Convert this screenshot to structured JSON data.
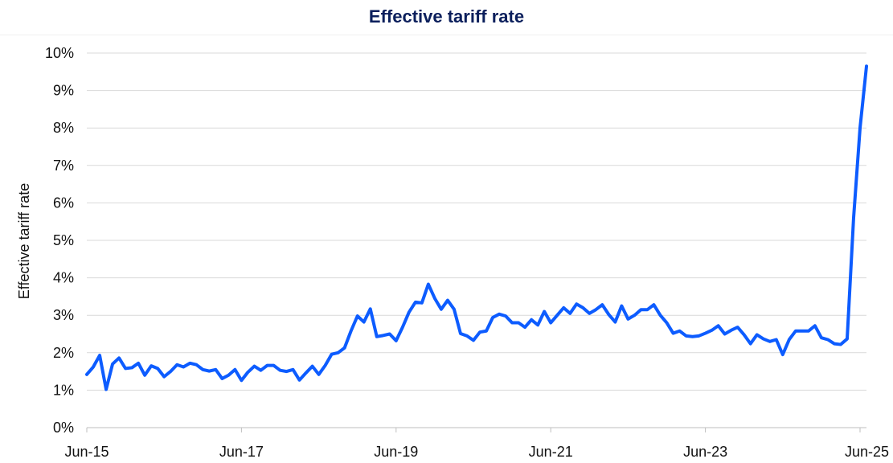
{
  "chart_data": {
    "type": "line",
    "title": "Effective tariff rate",
    "xlabel": "",
    "ylabel": "Effective tariff rate",
    "ylim": [
      0,
      10
    ],
    "yticks": [
      "0%",
      "1%",
      "2%",
      "3%",
      "4%",
      "5%",
      "6%",
      "7%",
      "8%",
      "9%",
      "10%"
    ],
    "xticks": [
      "Jun-15",
      "Jun-17",
      "Jun-19",
      "Jun-21",
      "Jun-23",
      "Jun-25"
    ],
    "grid": true,
    "colors": {
      "line": "#0d5cff",
      "grid": "#d9d9d9",
      "title": "#0b1f5c"
    },
    "series": [
      {
        "x_start": "Jun-15",
        "frequency": "monthly",
        "values": [
          1.42,
          1.62,
          1.93,
          1.02,
          1.7,
          1.86,
          1.58,
          1.6,
          1.72,
          1.4,
          1.65,
          1.58,
          1.36,
          1.5,
          1.68,
          1.62,
          1.72,
          1.68,
          1.55,
          1.51,
          1.55,
          1.31,
          1.4,
          1.55,
          1.26,
          1.48,
          1.64,
          1.53,
          1.66,
          1.66,
          1.53,
          1.5,
          1.55,
          1.27,
          1.46,
          1.64,
          1.42,
          1.66,
          1.96,
          2.0,
          2.13,
          2.58,
          2.98,
          2.82,
          3.17,
          2.43,
          2.46,
          2.5,
          2.32,
          2.68,
          3.08,
          3.35,
          3.33,
          3.83,
          3.45,
          3.16,
          3.4,
          3.16,
          2.51,
          2.45,
          2.33,
          2.55,
          2.58,
          2.94,
          3.03,
          2.98,
          2.8,
          2.8,
          2.68,
          2.88,
          2.74,
          3.1,
          2.8,
          3.0,
          3.2,
          3.05,
          3.3,
          3.2,
          3.05,
          3.15,
          3.28,
          3.02,
          2.82,
          3.25,
          2.9,
          3.0,
          3.15,
          3.15,
          3.28,
          3.0,
          2.8,
          2.52,
          2.58,
          2.45,
          2.43,
          2.45,
          2.52,
          2.6,
          2.72,
          2.5,
          2.6,
          2.68,
          2.48,
          2.24,
          2.48,
          2.37,
          2.3,
          2.35,
          1.95,
          2.35,
          2.58,
          2.58,
          2.58,
          2.72,
          2.4,
          2.35,
          2.24,
          2.22,
          2.37,
          5.6,
          8.0,
          9.65
        ]
      }
    ]
  }
}
